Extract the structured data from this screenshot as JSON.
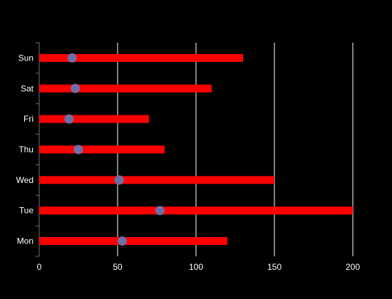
{
  "chart_data": {
    "type": "bar",
    "orientation": "horizontal",
    "categories": [
      "Mon",
      "Tue",
      "Wed",
      "Thu",
      "Fri",
      "Sat",
      "Sun"
    ],
    "series": [
      {
        "values": [
          120,
          200,
          150,
          80,
          70,
          110,
          130
        ],
        "color": "#ff0000"
      },
      {
        "values": [
          53,
          77,
          51,
          25,
          19,
          23,
          21
        ],
        "color": "#6f6fa8",
        "marker": "circle"
      }
    ],
    "xlim": [
      0,
      200
    ],
    "xticks": [
      0,
      50,
      100,
      150,
      200
    ],
    "grid": true,
    "title": "",
    "xlabel": "",
    "ylabel": "",
    "colors": {
      "background": "#000000",
      "grid": "#ffffff",
      "text": "#ffffff",
      "axis": "#6e7079"
    }
  }
}
